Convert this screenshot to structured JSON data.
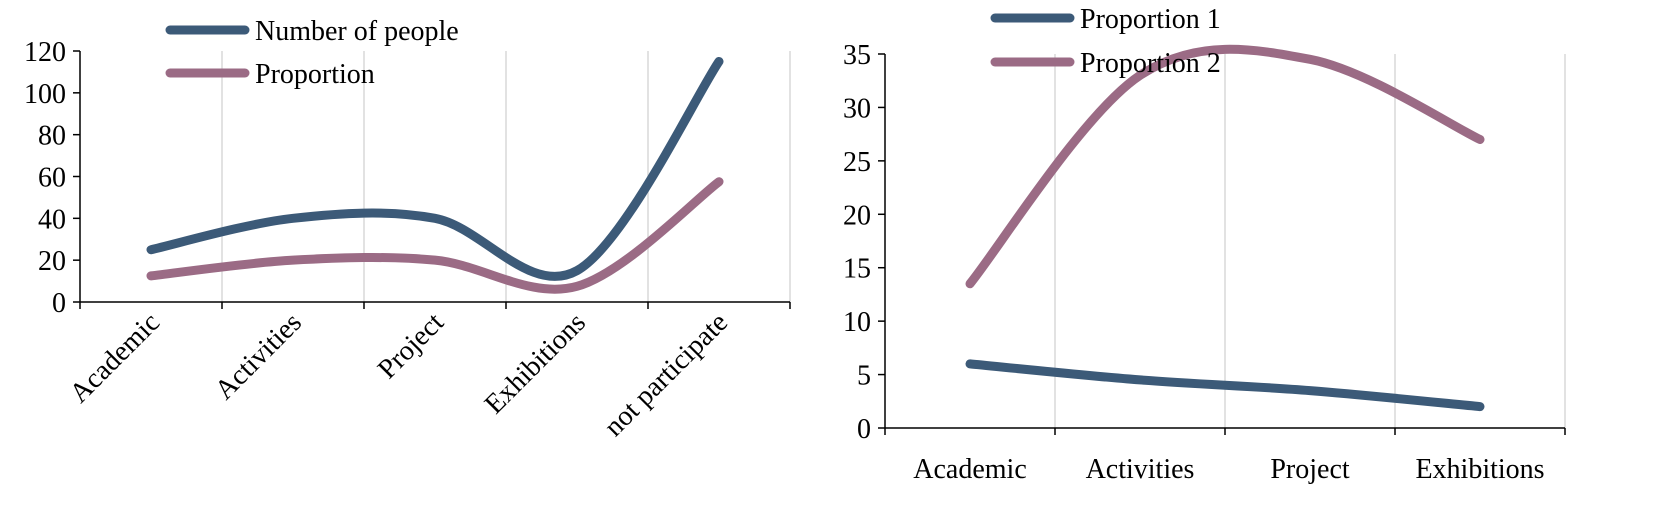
{
  "chart_data": [
    {
      "type": "line",
      "smooth": true,
      "categories": [
        "Academic",
        "Activities",
        "Project",
        "Exhibitions",
        "not participate"
      ],
      "category_label_rotation": -45,
      "series": [
        {
          "name": "Number of people",
          "color": "#3c5a78",
          "values": [
            25,
            40,
            40,
            15,
            115
          ]
        },
        {
          "name": "Proportion",
          "color": "#9b6b85",
          "values": [
            12.5,
            20,
            20,
            7.5,
            57.5
          ]
        }
      ],
      "ylim": [
        0,
        120
      ],
      "yticks": [
        "0",
        "20",
        "40",
        "60",
        "80",
        "100",
        "120"
      ],
      "grid": "vertical",
      "legend": "top-center",
      "title": "",
      "xlabel": "",
      "ylabel": ""
    },
    {
      "type": "line",
      "smooth": true,
      "categories": [
        "Academic",
        "Activities",
        "Project",
        "Exhibitions"
      ],
      "series": [
        {
          "name": "Proportion 1",
          "color": "#3c5a78",
          "values": [
            6,
            4.5,
            3.5,
            2
          ]
        },
        {
          "name": "Proportion 2",
          "color": "#9b6b85",
          "values": [
            13.5,
            33,
            34.5,
            27
          ]
        }
      ],
      "ylim": [
        0,
        35
      ],
      "yticks": [
        "0",
        "5",
        "10",
        "15",
        "20",
        "25",
        "30",
        "35"
      ],
      "grid": "vertical",
      "legend": "top-center",
      "title": "",
      "xlabel": "",
      "ylabel": ""
    }
  ]
}
